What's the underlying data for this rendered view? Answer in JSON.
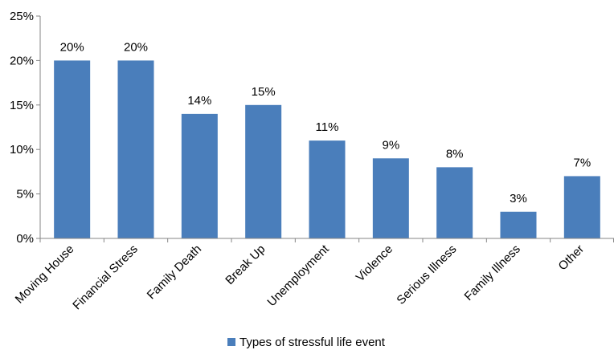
{
  "chart_data": {
    "type": "bar",
    "categories": [
      "Moving House",
      "Financial Stress",
      "Family Death",
      "Break Up",
      "Unemployment",
      "Violence",
      "Serious Illness",
      "Family Illness",
      "Other"
    ],
    "series": [
      {
        "name": "Types of stressful life event",
        "values": [
          20,
          20,
          14,
          15,
          11,
          9,
          8,
          3,
          7
        ],
        "data_labels": [
          "20%",
          "20%",
          "14%",
          "15%",
          "11%",
          "9%",
          "8%",
          "3%",
          "7%"
        ],
        "color": "#4A7EBB"
      }
    ],
    "ylim": [
      0,
      25
    ],
    "yticks": [
      0,
      5,
      10,
      15,
      20,
      25
    ],
    "ytick_labels": [
      "0%",
      "5%",
      "10%",
      "15%",
      "20%",
      "25%"
    ],
    "grid": false,
    "legend_position": "bottom",
    "title": "",
    "xlabel": "",
    "ylabel": ""
  }
}
